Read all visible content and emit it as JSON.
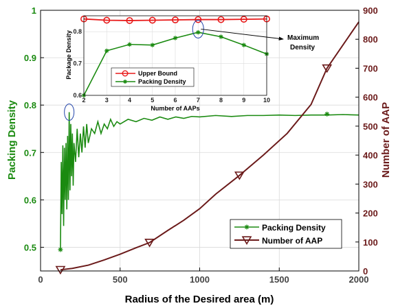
{
  "colors": {
    "packing": "#1a8a10",
    "aap": "#6b1a1a",
    "upper": "#e81818",
    "highlight": "#2244aa"
  },
  "chart_data": [
    {
      "type": "line",
      "x_axis": {
        "label": "Radius of the Desired area (m)",
        "range": [
          0,
          2000
        ],
        "ticks": [
          "0",
          "500",
          "1000",
          "1500",
          "2000"
        ]
      },
      "y_left": {
        "label": "Packing Density",
        "range": [
          0.45,
          1
        ],
        "ticks": [
          "0.5",
          "0.6",
          "0.7",
          "0.8",
          "0.9",
          "1"
        ]
      },
      "y_right": {
        "label": "Number of AAP",
        "range": [
          0,
          900
        ],
        "ticks": [
          "0",
          "100",
          "200",
          "300",
          "400",
          "500",
          "600",
          "700",
          "800",
          "900"
        ]
      },
      "grid": true,
      "legend_position": "bottom-right",
      "series": [
        {
          "name": "Packing Density",
          "axis": "left",
          "marker": "asterisk",
          "x": [
            125,
            130,
            135,
            140,
            145,
            150,
            155,
            160,
            165,
            170,
            175,
            180,
            185,
            190,
            195,
            200,
            205,
            210,
            220,
            230,
            240,
            250,
            260,
            270,
            280,
            290,
            300,
            320,
            340,
            360,
            380,
            400,
            420,
            440,
            460,
            480,
            500,
            550,
            600,
            650,
            700,
            750,
            800,
            850,
            900,
            950,
            1000,
            1100,
            1200,
            1300,
            1400,
            1500,
            1600,
            1700,
            1800,
            1900,
            2000
          ],
          "y": [
            0.495,
            0.68,
            0.57,
            0.715,
            0.545,
            0.71,
            0.6,
            0.72,
            0.58,
            0.735,
            0.6,
            0.785,
            0.62,
            0.76,
            0.65,
            0.74,
            0.63,
            0.72,
            0.68,
            0.75,
            0.69,
            0.74,
            0.7,
            0.755,
            0.71,
            0.76,
            0.72,
            0.75,
            0.74,
            0.765,
            0.74,
            0.76,
            0.75,
            0.77,
            0.755,
            0.765,
            0.76,
            0.77,
            0.765,
            0.772,
            0.768,
            0.775,
            0.77,
            0.775,
            0.772,
            0.776,
            0.775,
            0.778,
            0.776,
            0.778,
            0.778,
            0.779,
            0.778,
            0.779,
            0.779,
            0.78,
            0.779
          ],
          "marker_x": [
            125,
            1800
          ],
          "marker_y": [
            0.495,
            0.781
          ]
        },
        {
          "name": "Number of AAP",
          "axis": "right",
          "marker": "triangle-down",
          "x": [
            125,
            200,
            300,
            400,
            500,
            600,
            685,
            800,
            900,
            1000,
            1100,
            1250,
            1400,
            1550,
            1700,
            1800,
            1900,
            2000
          ],
          "y": [
            4,
            9,
            20,
            38,
            58,
            80,
            98,
            140,
            175,
            215,
            265,
            330,
            400,
            475,
            575,
            700,
            780,
            860
          ],
          "marker_x": [
            125,
            685,
            1250,
            1800
          ],
          "marker_y": [
            4,
            98,
            330,
            700
          ]
        }
      ],
      "annotation_circle": {
        "x": 180,
        "y": 0.785
      }
    },
    {
      "type": "line",
      "inset": true,
      "x_axis": {
        "label": "Number of AAPs",
        "range": [
          2,
          10
        ],
        "ticks": [
          "2",
          "3",
          "4",
          "5",
          "6",
          "7",
          "8",
          "9",
          "10"
        ]
      },
      "y_axis": {
        "label": "Package Density",
        "range": [
          0.6,
          0.85
        ],
        "ticks": [
          "0.6",
          "0.7",
          "0.8"
        ]
      },
      "grid": true,
      "legend_position": "bottom-center",
      "categories": [
        2,
        3,
        4,
        5,
        6,
        7,
        8,
        9,
        10
      ],
      "series": [
        {
          "name": "Upper Bound",
          "marker": "circle",
          "values": [
            0.84,
            0.836,
            0.835,
            0.836,
            0.837,
            0.838,
            0.838,
            0.839,
            0.84
          ]
        },
        {
          "name": "Packing Density",
          "marker": "asterisk",
          "values": [
            0.6,
            0.74,
            0.76,
            0.758,
            0.78,
            0.798,
            0.784,
            0.758,
            0.73
          ]
        }
      ],
      "annotation": {
        "text_line1": "Maximum",
        "text_line2": "Density",
        "x": 7,
        "y": 0.808
      }
    }
  ]
}
